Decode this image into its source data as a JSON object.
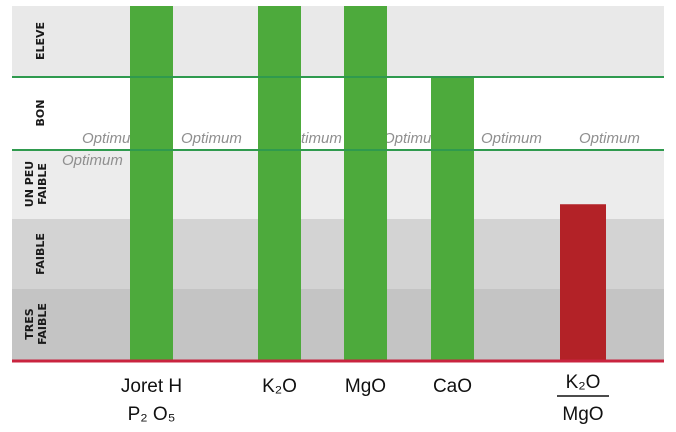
{
  "chart_data": {
    "type": "bar",
    "title": "",
    "xlabel": "",
    "ylabel": "",
    "levels": [
      {
        "label": "ELEVE",
        "color": "#e9e9e9"
      },
      {
        "label": "BON",
        "color": "#ffffff"
      },
      {
        "label": "UN PEU FAIBLE",
        "color": "#ececec"
      },
      {
        "label": "FAIBLE",
        "color": "#d3d3d3"
      },
      {
        "label": "TRES FAIBLE",
        "color": "#c4c4c4"
      }
    ],
    "categories": [
      {
        "label": "Joret H",
        "label2": "P₂ O₅",
        "value": 5.0,
        "color": "#4daa3c"
      },
      {
        "label": "K₂O",
        "value": 5.0,
        "color": "#4daa3c"
      },
      {
        "label": "MgO",
        "value": 5.0,
        "color": "#4daa3c"
      },
      {
        "label": "CaO",
        "value": 4.0,
        "color": "#4daa3c"
      },
      {
        "label": "K₂O",
        "label2": "MgO",
        "value": 2.2,
        "color": "#b32227",
        "fraction": true
      }
    ],
    "optimum_labels": [
      "Optimum",
      "Optimum",
      "Optimum",
      "Optimum",
      "Optimum",
      "Optimum",
      "Optimum"
    ],
    "ylim": [
      0,
      5.0
    ],
    "colors": {
      "green_line": "#2f9a4e",
      "baseline": "#c9243f"
    }
  }
}
